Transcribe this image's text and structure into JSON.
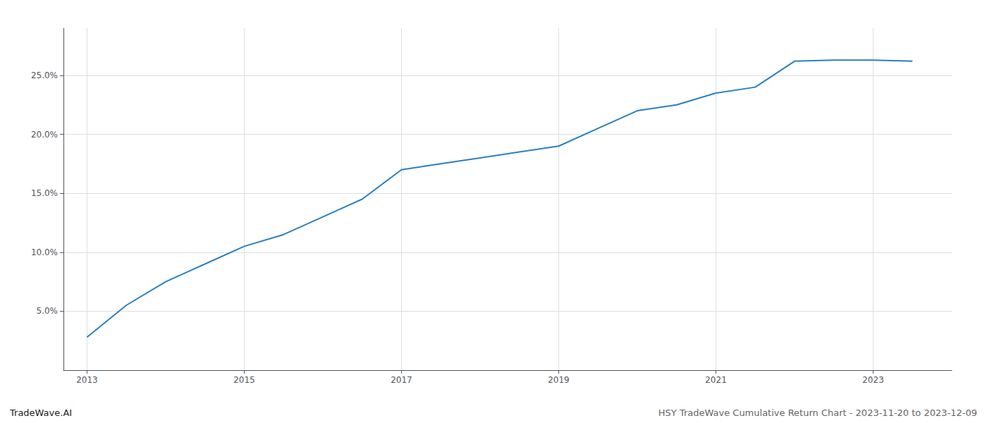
{
  "chart_data": {
    "type": "line",
    "x": [
      2013,
      2013.5,
      2014,
      2014.5,
      2015,
      2015.5,
      2016,
      2016.5,
      2017,
      2017.5,
      2018,
      2018.5,
      2019,
      2019.5,
      2020,
      2020.5,
      2021,
      2021.5,
      2022,
      2022.5,
      2023,
      2023.5
    ],
    "values": [
      2.8,
      5.5,
      7.5,
      9.0,
      10.5,
      11.5,
      13.0,
      14.5,
      17.0,
      17.5,
      18.0,
      18.5,
      19.0,
      20.5,
      22.0,
      22.5,
      23.5,
      24.0,
      26.2,
      26.3,
      26.3,
      26.2
    ],
    "color": "#2a7fc1",
    "xlim": [
      2012.7,
      2024.0
    ],
    "xticks": [
      2013,
      2015,
      2017,
      2019,
      2021,
      2023
    ],
    "ylim": [
      0,
      29
    ],
    "yticks": [
      {
        "value": 5.0,
        "label": "5.0%"
      },
      {
        "value": 10.0,
        "label": "10.0%"
      },
      {
        "value": 15.0,
        "label": "15.0%"
      },
      {
        "value": 20.0,
        "label": "20.0%"
      },
      {
        "value": 25.0,
        "label": "25.0%"
      }
    ],
    "grid": true,
    "annotations": [
      "TradeWave.AI",
      "HSY TradeWave Cumulative Return Chart - 2023-11-20 to 2023-12-09"
    ]
  }
}
